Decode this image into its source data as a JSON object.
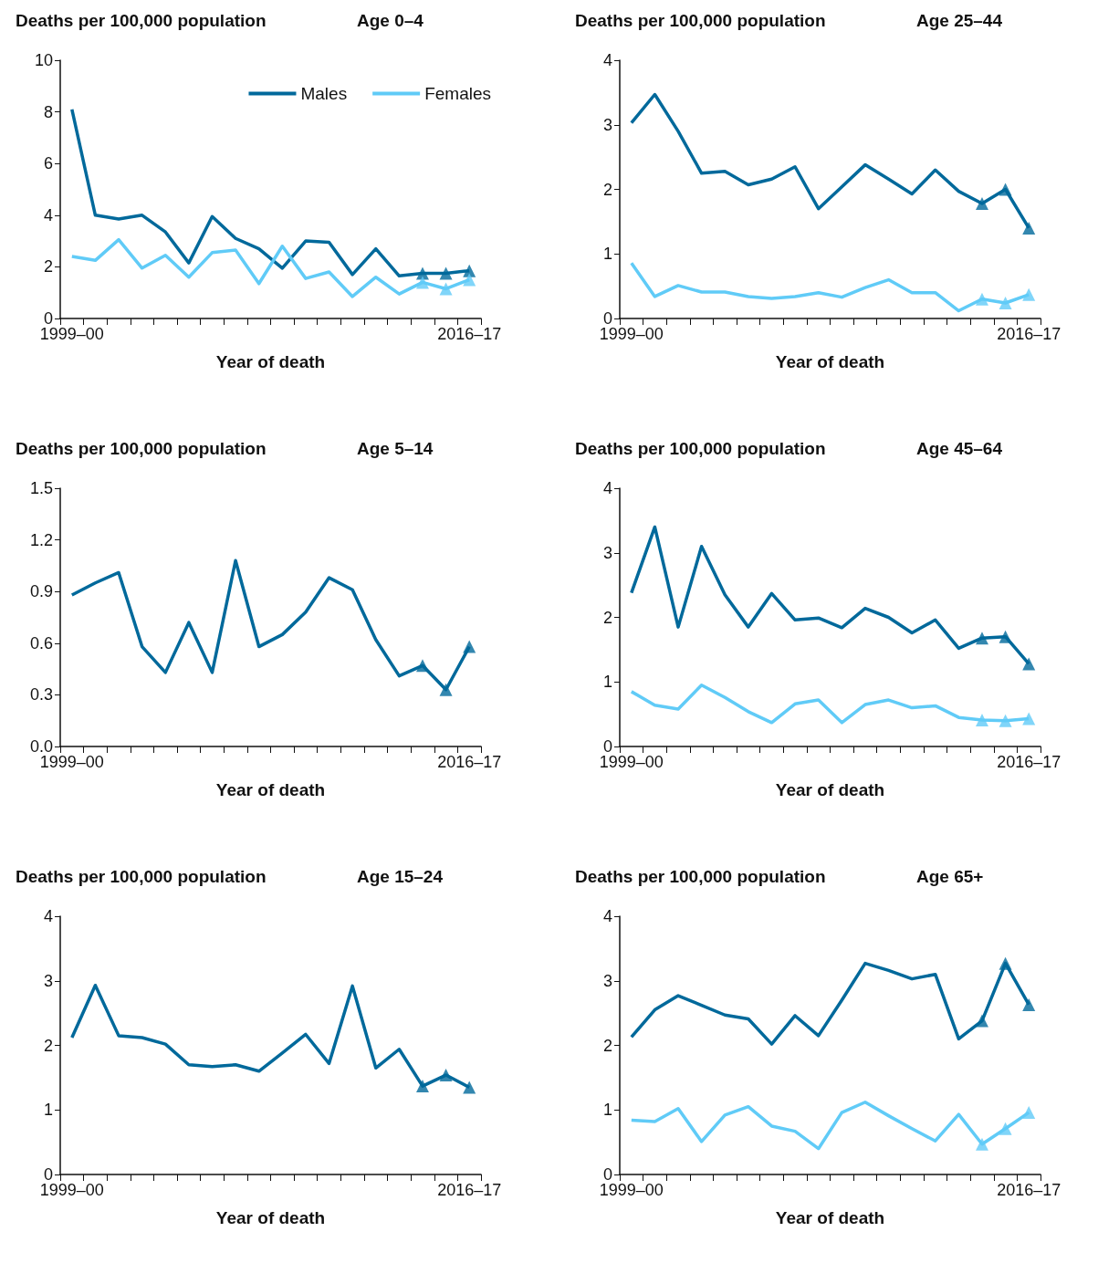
{
  "chart_data": [
    {
      "type": "line",
      "title": "Age 0–4",
      "ylabel": "Deaths per 100,000 population",
      "xlabel": "Year of death",
      "categories": [
        "1999–00",
        null,
        null,
        null,
        null,
        null,
        null,
        null,
        null,
        null,
        null,
        null,
        null,
        null,
        null,
        null,
        null,
        "2016–17"
      ],
      "ylim": [
        0,
        10
      ],
      "yticks": [
        0,
        2,
        4,
        6,
        8,
        10
      ],
      "grid": false,
      "legend": "top right",
      "marker": "none",
      "line_style": "solid",
      "series": [
        {
          "name": "Males",
          "color": "#00699b",
          "values": [
            8.1,
            4.0,
            3.85,
            4.0,
            3.35,
            2.15,
            3.95,
            3.1,
            2.7,
            1.95,
            3.0,
            2.95,
            1.7,
            2.7,
            1.65,
            1.75,
            1.75,
            1.85
          ]
        },
        {
          "name": "Females",
          "color": "#60cbf7",
          "values": [
            2.4,
            2.25,
            3.05,
            1.95,
            2.45,
            1.6,
            2.55,
            2.65,
            1.35,
            2.8,
            1.55,
            1.8,
            0.85,
            1.6,
            0.95,
            1.4,
            1.15,
            1.5
          ]
        },
        {
          "type": "scatter",
          "marker": "triangle",
          "color": "#00699b",
          "values": [
            null,
            null,
            null,
            null,
            null,
            null,
            null,
            null,
            null,
            null,
            null,
            null,
            null,
            null,
            null,
            1.75,
            1.75,
            1.85
          ]
        },
        {
          "type": "scatter",
          "marker": "triangle",
          "color": "#60cbf7",
          "values": [
            null,
            null,
            null,
            null,
            null,
            null,
            null,
            null,
            null,
            null,
            null,
            null,
            null,
            null,
            null,
            1.4,
            1.15,
            1.5
          ]
        }
      ]
    },
    {
      "type": "line",
      "title": "Age 25–44",
      "ylabel": "Deaths per 100,000 population",
      "xlabel": "Year of death",
      "categories": [
        "1999–00",
        null,
        null,
        null,
        null,
        null,
        null,
        null,
        null,
        null,
        null,
        null,
        null,
        null,
        null,
        null,
        null,
        "2016–17"
      ],
      "ylim": [
        0,
        4
      ],
      "yticks": [
        0,
        1,
        2,
        3,
        4
      ],
      "grid": false,
      "legend": false,
      "marker": "none",
      "line_style": "solid",
      "series": [
        {
          "color": "#00699b",
          "values": [
            3.03,
            3.47,
            2.9,
            2.25,
            2.28,
            2.07,
            2.16,
            2.35,
            1.7,
            2.04,
            2.38,
            2.16,
            1.93,
            2.3,
            1.97,
            1.78,
            2.0,
            1.4
          ]
        },
        {
          "color": "#60cbf7",
          "values": [
            0.86,
            0.34,
            0.51,
            0.41,
            0.41,
            0.34,
            0.31,
            0.34,
            0.4,
            0.33,
            0.48,
            0.6,
            0.4,
            0.4,
            0.12,
            0.3,
            0.24,
            0.37
          ]
        },
        {
          "type": "scatter",
          "marker": "triangle",
          "color": "#00699b",
          "values": [
            null,
            null,
            null,
            null,
            null,
            null,
            null,
            null,
            null,
            null,
            null,
            null,
            null,
            null,
            null,
            1.78,
            2.0,
            1.4
          ]
        },
        {
          "type": "scatter",
          "marker": "triangle",
          "color": "#60cbf7",
          "values": [
            null,
            null,
            null,
            null,
            null,
            null,
            null,
            null,
            null,
            null,
            null,
            null,
            null,
            null,
            null,
            0.3,
            0.24,
            0.37
          ]
        }
      ]
    },
    {
      "type": "line",
      "title": "Age 5–14",
      "ylabel": "Deaths per 100,000 population",
      "xlabel": "Year of death",
      "categories": [
        "1999–00",
        null,
        null,
        null,
        null,
        null,
        null,
        null,
        null,
        null,
        null,
        null,
        null,
        null,
        null,
        null,
        null,
        "2016–17"
      ],
      "ylim": [
        0,
        1.5
      ],
      "yticks": [
        {
          "value": 0,
          "label": "0.0"
        },
        0.3,
        0.6,
        0.9,
        1.2,
        1.5
      ],
      "grid": false,
      "legend": false,
      "marker": "none",
      "line_style": "solid",
      "series": [
        {
          "color": "#00699b",
          "values": [
            0.88,
            0.95,
            1.01,
            0.58,
            0.43,
            0.72,
            0.43,
            1.08,
            0.58,
            0.65,
            0.78,
            0.98,
            0.91,
            0.62,
            0.41,
            0.47,
            0.33,
            0.58
          ]
        },
        {
          "type": "scatter",
          "marker": "triangle",
          "color": "#00699b",
          "values": [
            null,
            null,
            null,
            null,
            null,
            null,
            null,
            null,
            null,
            null,
            null,
            null,
            null,
            null,
            null,
            0.47,
            0.33,
            0.58
          ]
        }
      ]
    },
    {
      "type": "line",
      "title": "Age 45–64",
      "ylabel": "Deaths per 100,000 population",
      "xlabel": "Year of death",
      "categories": [
        "1999–00",
        null,
        null,
        null,
        null,
        null,
        null,
        null,
        null,
        null,
        null,
        null,
        null,
        null,
        null,
        null,
        null,
        "2016–17"
      ],
      "ylim": [
        0,
        4
      ],
      "yticks": [
        0,
        1,
        2,
        3,
        4
      ],
      "grid": false,
      "legend": false,
      "marker": "none",
      "line_style": "solid",
      "series": [
        {
          "color": "#00699b",
          "values": [
            2.38,
            3.4,
            1.85,
            3.1,
            2.35,
            1.85,
            2.37,
            1.96,
            1.99,
            1.84,
            2.14,
            2.0,
            1.76,
            1.96,
            1.52,
            1.68,
            1.7,
            1.28
          ]
        },
        {
          "color": "#60cbf7",
          "values": [
            0.85,
            0.64,
            0.58,
            0.95,
            0.76,
            0.54,
            0.37,
            0.66,
            0.72,
            0.37,
            0.65,
            0.72,
            0.6,
            0.63,
            0.45,
            0.41,
            0.4,
            0.43
          ]
        },
        {
          "type": "scatter",
          "marker": "triangle",
          "color": "#00699b",
          "values": [
            null,
            null,
            null,
            null,
            null,
            null,
            null,
            null,
            null,
            null,
            null,
            null,
            null,
            null,
            null,
            1.68,
            1.7,
            1.28
          ]
        },
        {
          "type": "scatter",
          "marker": "triangle",
          "color": "#60cbf7",
          "values": [
            null,
            null,
            null,
            null,
            null,
            null,
            null,
            null,
            null,
            null,
            null,
            null,
            null,
            null,
            null,
            0.41,
            0.4,
            0.43
          ]
        }
      ]
    },
    {
      "type": "line",
      "title": "Age 15–24",
      "ylabel": "Deaths per 100,000 population",
      "xlabel": "Year of death",
      "categories": [
        "1999–00",
        null,
        null,
        null,
        null,
        null,
        null,
        null,
        null,
        null,
        null,
        null,
        null,
        null,
        null,
        null,
        null,
        "2016–17"
      ],
      "ylim": [
        0,
        4
      ],
      "yticks": [
        0,
        1,
        2,
        3,
        4
      ],
      "grid": false,
      "legend": false,
      "marker": "none",
      "line_style": "solid",
      "series": [
        {
          "color": "#00699b",
          "values": [
            2.12,
            2.93,
            2.15,
            2.12,
            2.02,
            1.7,
            1.67,
            1.7,
            1.6,
            1.88,
            2.17,
            1.72,
            2.92,
            1.65,
            1.94,
            1.37,
            1.54,
            1.35
          ]
        },
        {
          "type": "scatter",
          "marker": "triangle",
          "color": "#00699b",
          "values": [
            null,
            null,
            null,
            null,
            null,
            null,
            null,
            null,
            null,
            null,
            null,
            null,
            null,
            null,
            null,
            1.37,
            1.54,
            1.35
          ]
        }
      ]
    },
    {
      "type": "line",
      "title": "Age 65+",
      "ylabel": "Deaths per 100,000 population",
      "xlabel": "Year of death",
      "categories": [
        "1999–00",
        null,
        null,
        null,
        null,
        null,
        null,
        null,
        null,
        null,
        null,
        null,
        null,
        null,
        null,
        null,
        null,
        "2016–17"
      ],
      "ylim": [
        0,
        4
      ],
      "yticks": [
        0,
        1,
        2,
        3,
        4
      ],
      "grid": false,
      "legend": false,
      "marker": "none",
      "line_style": "solid",
      "series": [
        {
          "color": "#00699b",
          "values": [
            2.13,
            2.55,
            2.77,
            2.62,
            2.47,
            2.41,
            2.02,
            2.46,
            2.15,
            2.7,
            3.27,
            3.16,
            3.03,
            3.1,
            2.1,
            2.38,
            3.27,
            2.63
          ]
        },
        {
          "color": "#60cbf7",
          "values": [
            0.84,
            0.82,
            1.02,
            0.51,
            0.92,
            1.05,
            0.75,
            0.67,
            0.4,
            0.96,
            1.12,
            0.91,
            0.71,
            0.52,
            0.93,
            0.47,
            0.71,
            0.96
          ]
        },
        {
          "type": "scatter",
          "marker": "triangle",
          "color": "#00699b",
          "values": [
            null,
            null,
            null,
            null,
            null,
            null,
            null,
            null,
            null,
            null,
            null,
            null,
            null,
            null,
            null,
            2.38,
            3.27,
            2.63
          ]
        },
        {
          "type": "scatter",
          "marker": "triangle",
          "color": "#60cbf7",
          "values": [
            null,
            null,
            null,
            null,
            null,
            null,
            null,
            null,
            null,
            null,
            null,
            null,
            null,
            null,
            null,
            0.47,
            0.71,
            0.96
          ]
        }
      ]
    }
  ]
}
